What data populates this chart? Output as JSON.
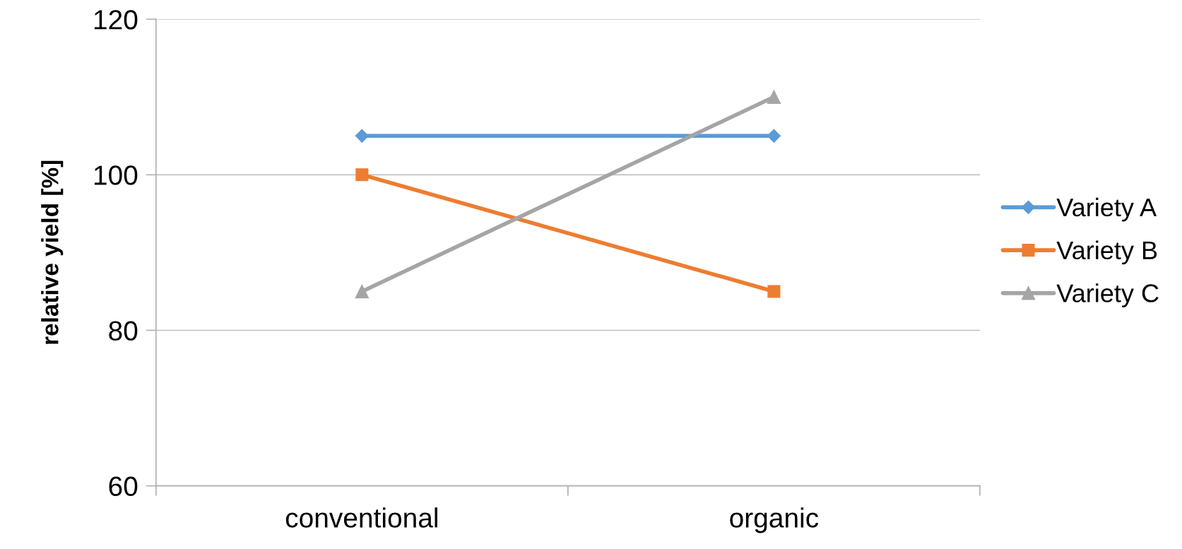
{
  "chart_data": {
    "type": "line",
    "ylabel": "relative yield [%]",
    "categories": [
      "conventional",
      "organic"
    ],
    "series": [
      {
        "name": "Variety A",
        "color": "#5b9bd5",
        "marker": "diamond",
        "values": [
          105,
          105
        ]
      },
      {
        "name": "Variety B",
        "color": "#ed7d31",
        "marker": "square",
        "values": [
          100,
          85
        ]
      },
      {
        "name": "Variety C",
        "color": "#a5a5a5",
        "marker": "triangle",
        "values": [
          85,
          110
        ]
      }
    ],
    "ylim": [
      60,
      120
    ],
    "yticks": [
      60,
      80,
      100,
      120
    ],
    "grid": "y",
    "legend": "right",
    "line_style": "solid"
  }
}
